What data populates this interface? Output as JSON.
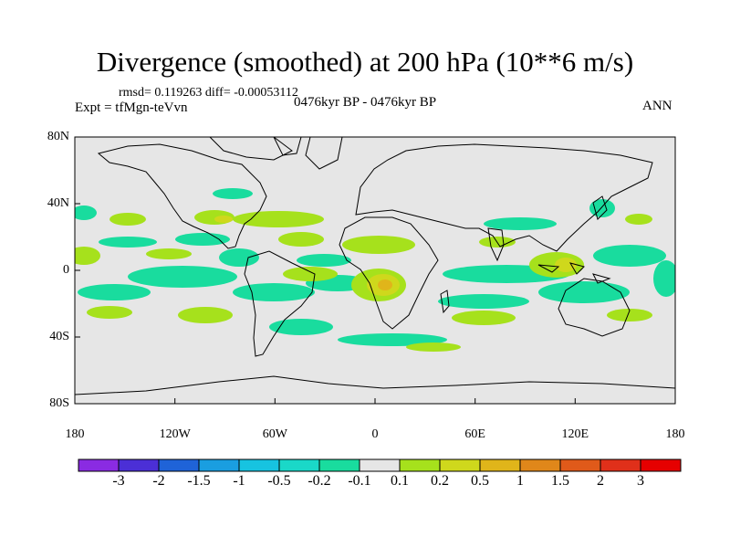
{
  "title": "Divergence (smoothed) at 200 hPa (10**6 m/s)",
  "stats": "rmsd= 0.119263  diff= -0.00053112",
  "experiment": "Expt = tfMgn-teVvn",
  "period": "0476kyr BP - 0476kyr BP",
  "season": "ANN",
  "lat_ticks": [
    "80N",
    "40N",
    "0",
    "40S",
    "80S"
  ],
  "lon_ticks": [
    "180",
    "120W",
    "60W",
    "0",
    "60E",
    "120E",
    "180"
  ],
  "colorbar": {
    "labels": [
      "-3",
      "-2",
      "-1.5",
      "-1",
      "-0.5",
      "-0.2",
      "-0.1",
      "0.1",
      "0.2",
      "0.5",
      "1",
      "1.5",
      "2",
      "3"
    ],
    "colors": [
      "#8a2be2",
      "#4b2fd6",
      "#1f63d8",
      "#1a9ee0",
      "#17c3e0",
      "#1ad8c8",
      "#19dc9e",
      "#e6e6e6",
      "#a6e11c",
      "#cfd81c",
      "#e0b51a",
      "#e0871a",
      "#e05a1a",
      "#e0301a",
      "#e60000"
    ]
  },
  "map": {
    "background_color": "#e6e6e6",
    "coastline_color": "#000000"
  }
}
